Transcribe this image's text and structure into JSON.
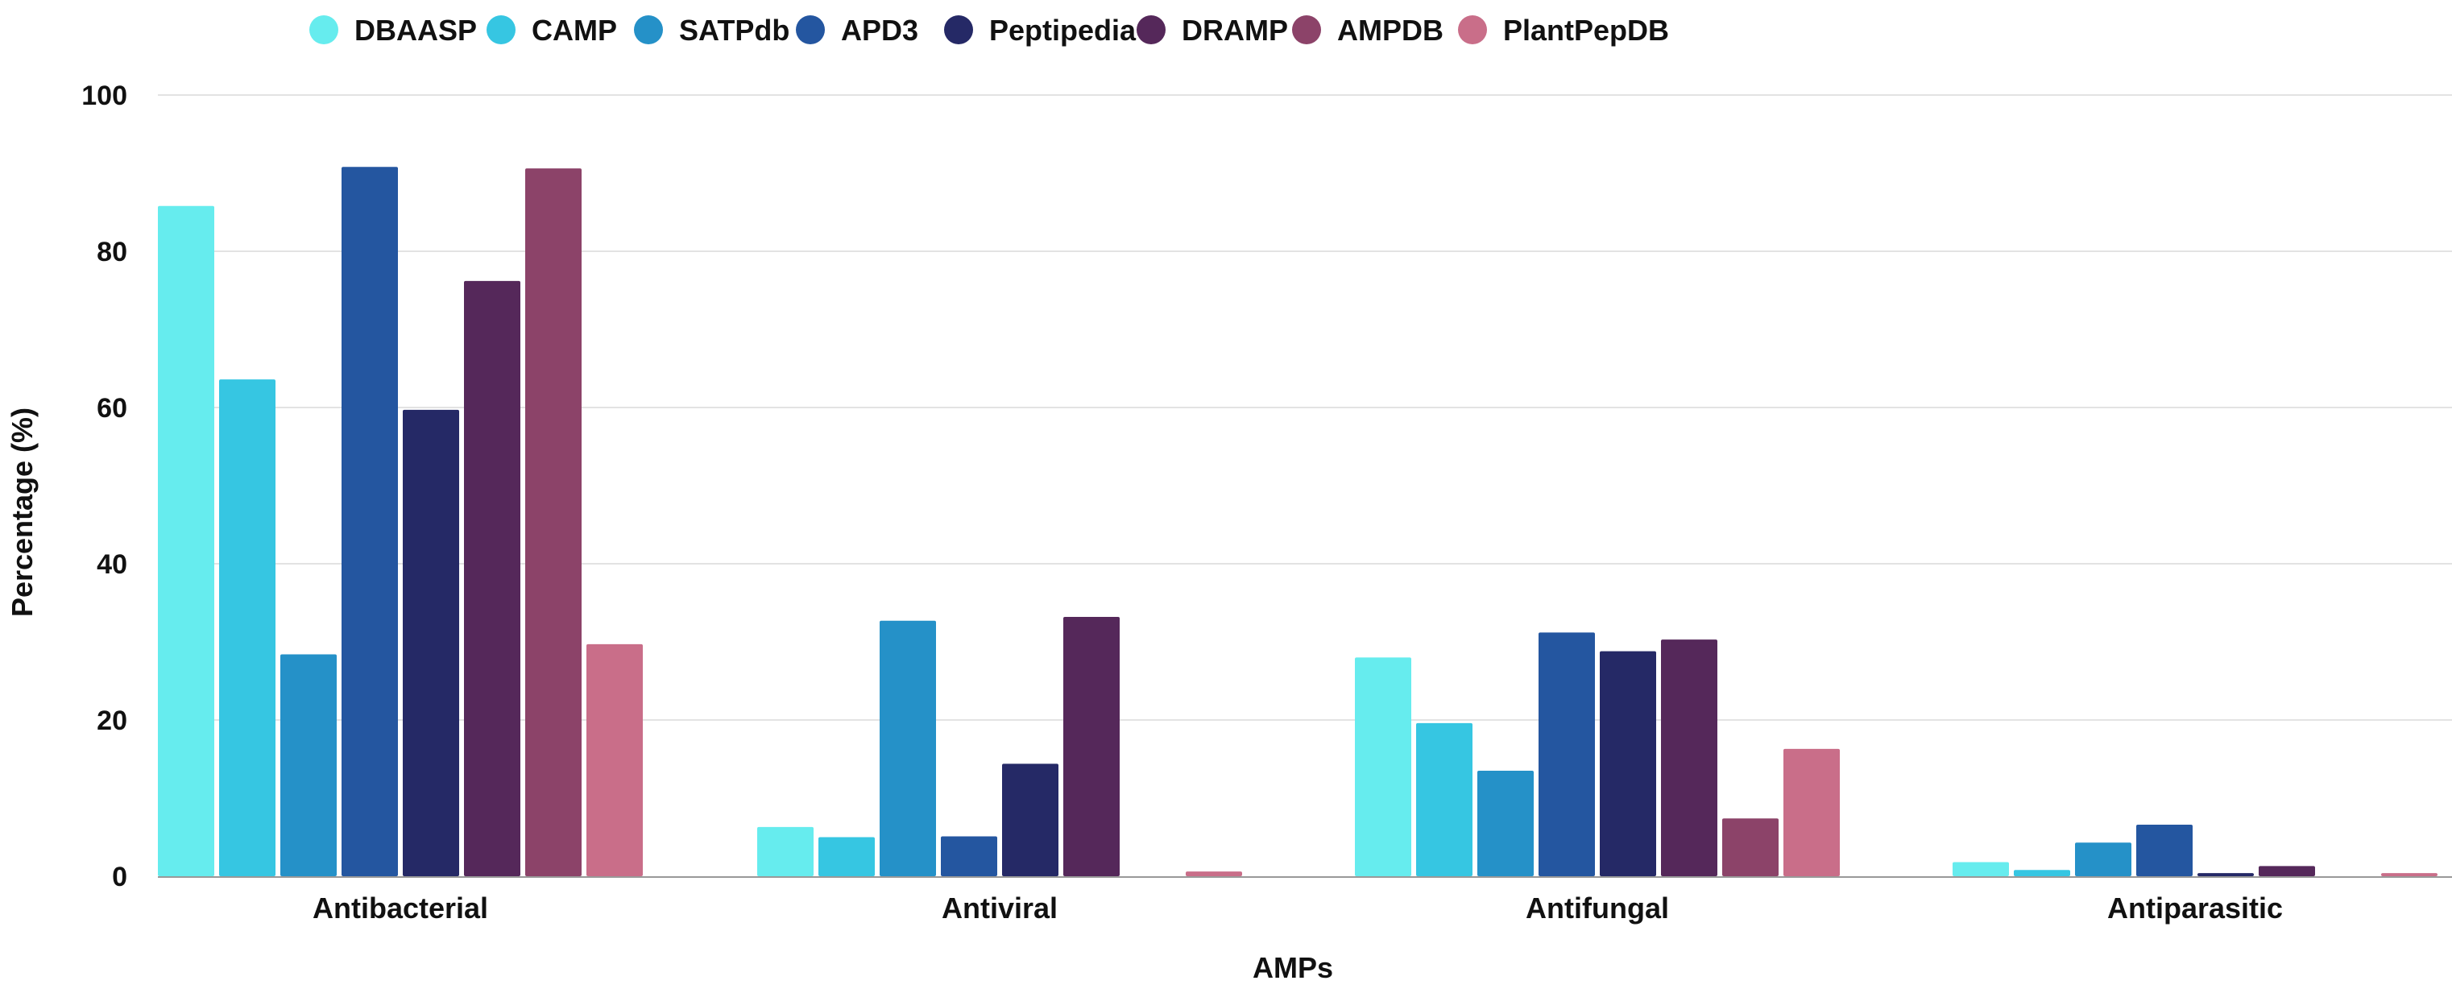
{
  "chart_data": {
    "type": "bar",
    "title": "",
    "xlabel": "AMPs",
    "ylabel": "Percentage (%)",
    "ylim": [
      0,
      100
    ],
    "yticks": [
      0,
      20,
      40,
      60,
      80,
      100
    ],
    "grid": true,
    "legend_position": "top",
    "categories": [
      "Antibacterial",
      "Antiviral",
      "Antifungal",
      "Antiparasitic"
    ],
    "series": [
      {
        "name": "DBAASP",
        "color": "#66ECEE",
        "values": [
          85.8,
          6.3,
          28.0,
          1.8
        ]
      },
      {
        "name": "CAMP",
        "color": "#36C6E2",
        "values": [
          63.6,
          5.0,
          19.6,
          0.8
        ]
      },
      {
        "name": "SATPdb",
        "color": "#2591C8",
        "values": [
          28.4,
          32.7,
          13.5,
          4.3
        ]
      },
      {
        "name": "APD3",
        "color": "#2456A0",
        "values": [
          90.8,
          5.1,
          31.2,
          6.6
        ]
      },
      {
        "name": "Peptipedia",
        "color": "#252966",
        "values": [
          59.7,
          14.4,
          28.8,
          0.4
        ]
      },
      {
        "name": "DRAMP",
        "color": "#55285A",
        "values": [
          76.2,
          33.2,
          30.3,
          1.3
        ]
      },
      {
        "name": "AMPDB",
        "color": "#8C4369",
        "values": [
          90.6,
          0.0,
          7.4,
          0.0
        ]
      },
      {
        "name": "PlantPepDB",
        "color": "#C96E89",
        "values": [
          29.7,
          0.6,
          16.3,
          0.4
        ]
      }
    ]
  }
}
